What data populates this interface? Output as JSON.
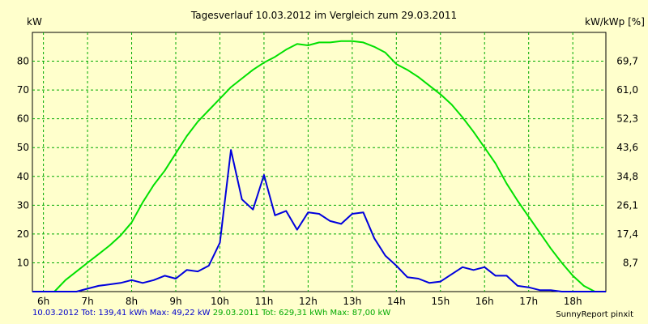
{
  "chart_data": {
    "type": "line",
    "title": "Tagesverlauf 10.03.2012 im Vergleich zum 29.03.2011",
    "ylabel": "kW",
    "y2label": "kW/kWp [%]",
    "ylim": [
      0,
      90
    ],
    "y_ticks": [
      10,
      20,
      30,
      40,
      50,
      60,
      70,
      80
    ],
    "y2_ticks": [
      "8,7",
      "17,4",
      "26,1",
      "34,8",
      "43,6",
      "52,3",
      "61,0",
      "69,7"
    ],
    "xlim": [
      5.75,
      18.75
    ],
    "x_ticks": [
      6,
      7,
      8,
      9,
      10,
      11,
      12,
      13,
      14,
      15,
      16,
      17,
      18
    ],
    "x_tick_labels": [
      "6h",
      "7h",
      "8h",
      "9h",
      "10h",
      "11h",
      "12h",
      "13h",
      "14h",
      "15h",
      "16h",
      "17h",
      "18h"
    ],
    "grid": true,
    "series": [
      {
        "color": "#00e000",
        "x": [
          5.75,
          6.25,
          6.5,
          6.75,
          7,
          7.25,
          7.5,
          7.75,
          8,
          8.25,
          8.5,
          8.75,
          9,
          9.25,
          9.5,
          9.75,
          10,
          10.25,
          10.5,
          10.75,
          11,
          11.25,
          11.5,
          11.75,
          12,
          12.25,
          12.5,
          12.75,
          13,
          13.25,
          13.5,
          13.75,
          14,
          14.25,
          14.5,
          14.75,
          15,
          15.25,
          15.5,
          15.75,
          16,
          16.25,
          16.5,
          16.75,
          17,
          17.25,
          17.5,
          17.75,
          18,
          18.25,
          18.5,
          18.75
        ],
        "y": [
          0,
          0,
          4,
          7,
          10,
          13,
          16,
          19.5,
          24,
          31,
          37,
          42,
          48,
          54,
          59,
          63,
          67,
          71,
          74,
          77,
          79.5,
          81.5,
          84,
          86,
          85.5,
          86.5,
          86.5,
          87,
          87,
          86.5,
          85,
          83,
          79,
          77,
          74.5,
          71.5,
          68.5,
          65,
          60.5,
          55.5,
          50,
          44.5,
          37.5,
          31.5,
          26,
          20.5,
          15,
          10,
          5.5,
          2,
          0,
          0
        ]
      },
      {
        "color": "#0000dd",
        "x": [
          5.75,
          6.75,
          7,
          7.25,
          7.5,
          7.75,
          8,
          8.25,
          8.5,
          8.75,
          9,
          9.25,
          9.5,
          9.75,
          10,
          10.25,
          10.5,
          10.75,
          11,
          11.25,
          11.5,
          11.75,
          12,
          12.25,
          12.5,
          12.75,
          13,
          13.25,
          13.5,
          13.75,
          14,
          14.25,
          14.5,
          14.75,
          15,
          15.25,
          15.5,
          15.75,
          16,
          16.25,
          16.5,
          16.75,
          17,
          17.25,
          17.5,
          17.75,
          18,
          18.75
        ],
        "y": [
          0,
          0,
          1,
          2,
          2.5,
          3,
          4,
          3,
          4,
          5.5,
          4.5,
          7.5,
          7,
          9,
          17,
          49.2,
          32,
          28.5,
          40.5,
          26.5,
          28,
          21.5,
          27.5,
          27,
          24.5,
          23.5,
          27,
          27.5,
          18.5,
          12.5,
          9,
          5,
          4.5,
          3,
          3.5,
          6,
          8.5,
          7.5,
          8.5,
          5.5,
          5.5,
          2,
          1.5,
          0.5,
          0.5,
          0,
          0,
          0
        ]
      }
    ]
  },
  "footer": {
    "series2_label": "10.03.2012 Tot: 139,41 kWh Max: 49,22 kW",
    "series2_color": "#0000cc",
    "series1_label": "29.03.2011 Tot: 629,31 kWh Max: 87,00 kW",
    "series1_color": "#00aa00",
    "credit": "SunnyReport pinxit"
  }
}
